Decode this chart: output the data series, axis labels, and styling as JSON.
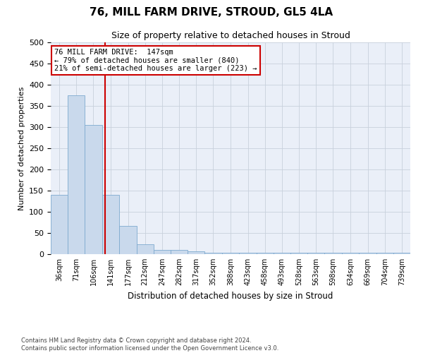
{
  "title1": "76, MILL FARM DRIVE, STROUD, GL5 4LA",
  "title2": "Size of property relative to detached houses in Stroud",
  "xlabel": "Distribution of detached houses by size in Stroud",
  "ylabel": "Number of detached properties",
  "footnote": "Contains HM Land Registry data © Crown copyright and database right 2024.\nContains public sector information licensed under the Open Government Licence v3.0.",
  "bar_edges": [
    36,
    71,
    106,
    141,
    177,
    212,
    247,
    282,
    317,
    352,
    388,
    423,
    458,
    493,
    528,
    563,
    598,
    634,
    669,
    704,
    739
  ],
  "bar_heights": [
    140,
    375,
    305,
    140,
    67,
    23,
    10,
    10,
    7,
    4,
    4,
    4,
    4,
    4,
    4,
    4,
    4,
    4,
    4,
    4,
    4
  ],
  "bar_color": "#c9d9ec",
  "bar_edge_color": "#7eaacf",
  "grid_color": "#c8d0dc",
  "bg_color": "#eaeff8",
  "vline_x": 147,
  "vline_color": "#cc0000",
  "annotation_line1": "76 MILL FARM DRIVE:  147sqm",
  "annotation_line2": "← 79% of detached houses are smaller (840)",
  "annotation_line3": "21% of semi-detached houses are larger (223) →",
  "annotation_box_color": "#ffffff",
  "annotation_box_edge": "#cc0000",
  "ylim": [
    0,
    500
  ],
  "yticks": [
    0,
    50,
    100,
    150,
    200,
    250,
    300,
    350,
    400,
    450,
    500
  ]
}
